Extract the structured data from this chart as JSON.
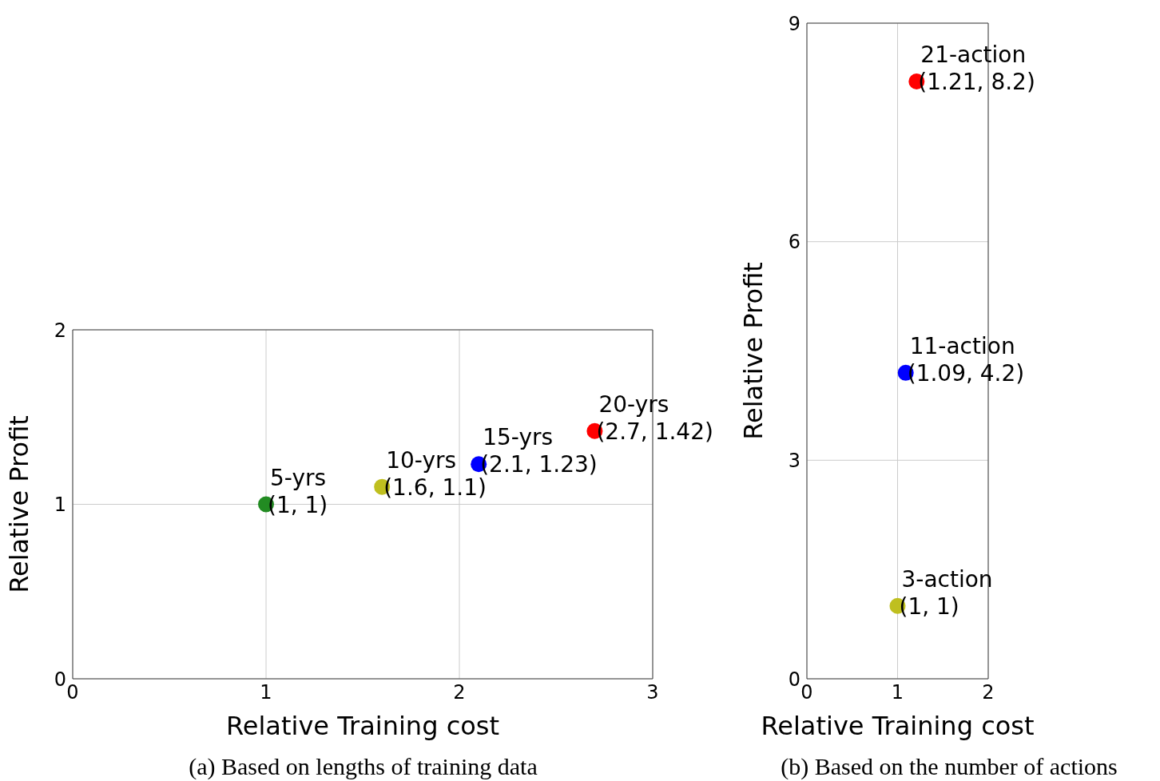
{
  "chart_data": [
    {
      "type": "scatter",
      "title": "(a) Based on lengths of training data",
      "xlabel": "Relative Training cost",
      "ylabel": "Relative Profit",
      "x": [
        1,
        1.6,
        2.1,
        2.7
      ],
      "values": [
        1,
        1.1,
        1.23,
        1.42
      ],
      "colors": [
        "#228b22",
        "#bfbf1f",
        "#0000ff",
        "#ff0000"
      ],
      "value_labels": [
        "(1, 1)",
        "(1.6, 1.1)",
        "(2.1, 1.23)",
        "(2.7, 1.42)"
      ],
      "annotations": [
        {
          "text": "5-yrs",
          "x": 1,
          "y": 1
        },
        {
          "text": "10-yrs",
          "x": 1.6,
          "y": 1.1
        },
        {
          "text": "15-yrs",
          "x": 2.1,
          "y": 1.23
        },
        {
          "text": "20-yrs",
          "x": 2.7,
          "y": 1.42
        }
      ],
      "xlim": [
        0,
        3
      ],
      "ylim": [
        0,
        2
      ],
      "xticks": [
        0,
        1,
        2,
        3
      ],
      "yticks": [
        0,
        1,
        2
      ],
      "grid": true,
      "marker": "circle"
    },
    {
      "type": "scatter",
      "title": "(b) Based on the number of actions",
      "xlabel": "Relative Training cost",
      "ylabel": "Relative Profit",
      "x": [
        1,
        1.09,
        1.21
      ],
      "values": [
        1,
        4.2,
        8.2
      ],
      "colors": [
        "#bfbf1f",
        "#0000ff",
        "#ff0000"
      ],
      "value_labels": [
        "(1, 1)",
        "(1.09, 4.2)",
        "(1.21, 8.2)"
      ],
      "annotations": [
        {
          "text": "3-action",
          "x": 1,
          "y": 1
        },
        {
          "text": "11-action",
          "x": 1.09,
          "y": 4.2
        },
        {
          "text": "21-action",
          "x": 1.21,
          "y": 8.2
        }
      ],
      "xlim": [
        0,
        2
      ],
      "ylim": [
        0,
        9
      ],
      "xticks": [
        0,
        1,
        2
      ],
      "yticks": [
        0,
        3,
        6,
        9
      ],
      "grid": true,
      "marker": "circle"
    }
  ]
}
